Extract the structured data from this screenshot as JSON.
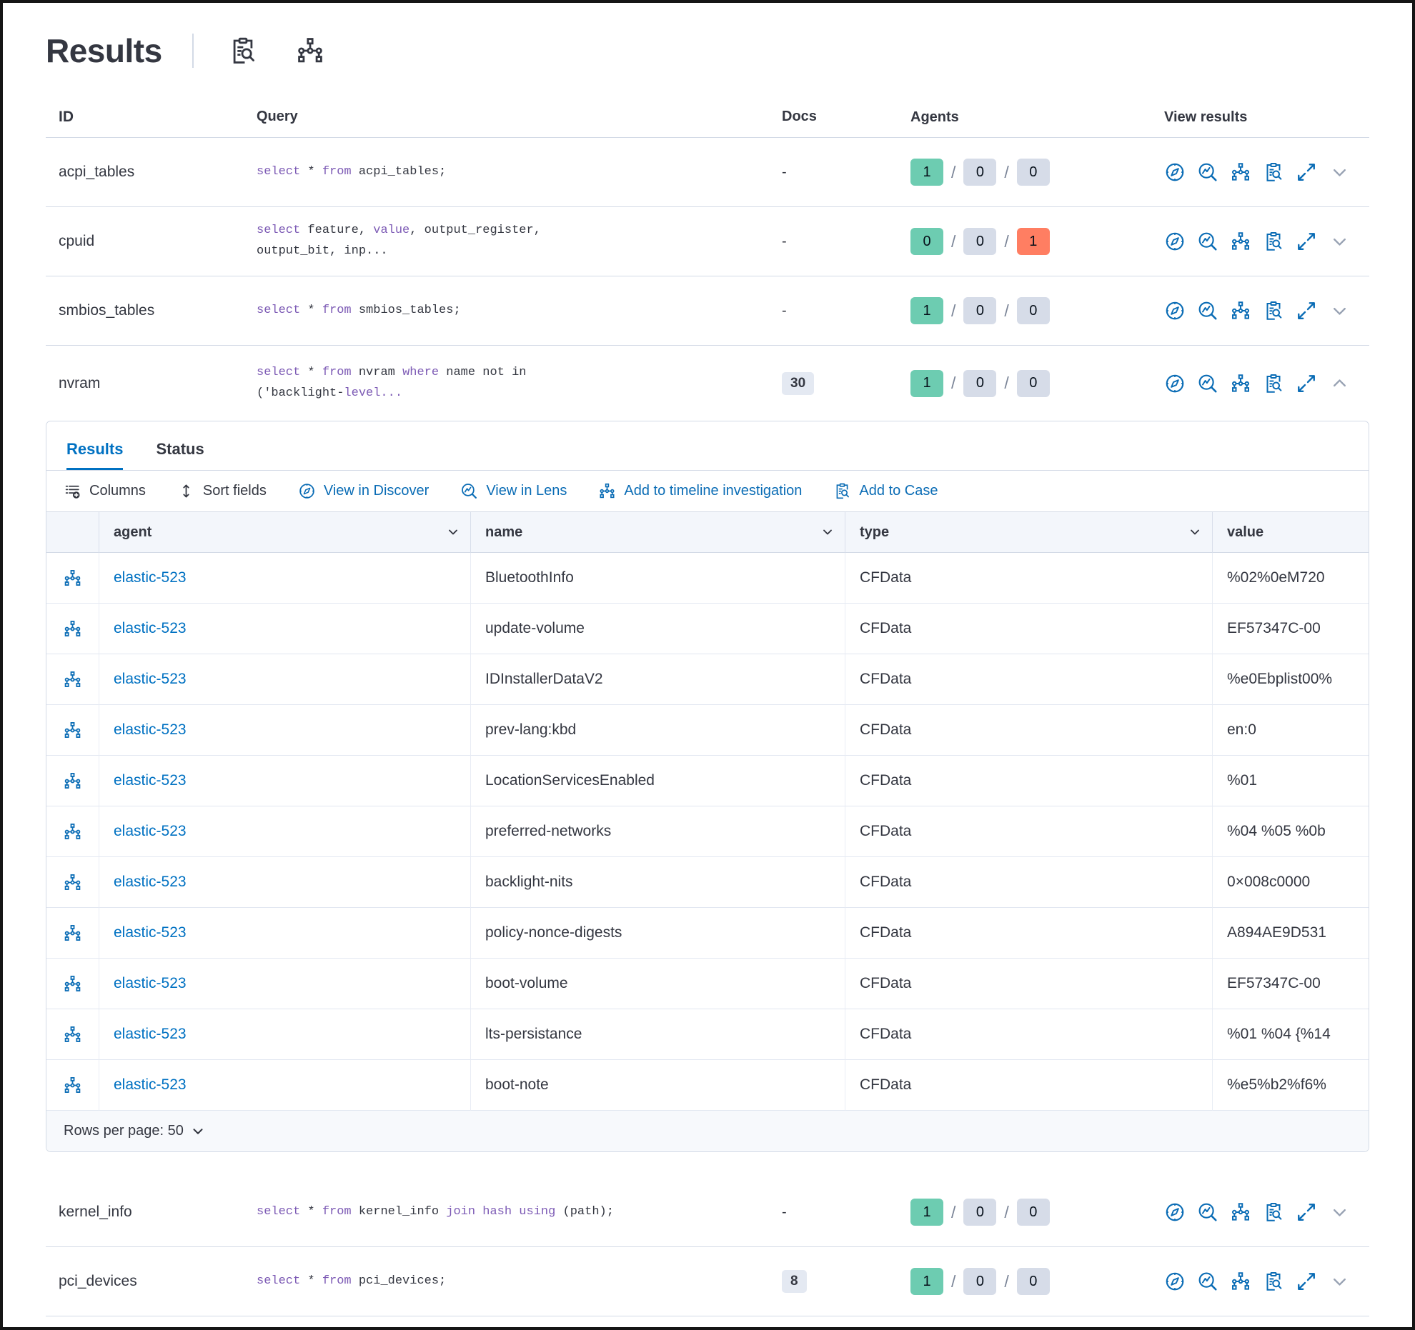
{
  "theme": {
    "link_blue": "#0071c2",
    "icon_blue": "#0a6cb5",
    "keyword_purple": "#7d5bb5",
    "badge_green": "#6dccb1",
    "badge_gray": "#d6dce8",
    "badge_red": "#ff7e62",
    "text": "#343741",
    "border": "#d3dae6"
  },
  "header": {
    "title": "Results"
  },
  "table": {
    "columns": [
      "ID",
      "Query",
      "Docs",
      "Agents",
      "View results"
    ]
  },
  "agents_separator": "/",
  "view_actions": [
    {
      "icon": "discover",
      "name": "view-in-discover-icon"
    },
    {
      "icon": "lens",
      "name": "view-in-lens-icon"
    },
    {
      "icon": "timeline",
      "name": "add-to-timeline-icon"
    },
    {
      "icon": "case",
      "name": "add-to-case-icon"
    },
    {
      "icon": "expand",
      "name": "expand-results-icon"
    }
  ],
  "queries": [
    {
      "id": "acpi_tables",
      "docs": "-",
      "docs_badge": false,
      "agents": [
        1,
        0,
        0
      ],
      "expanded": false,
      "sql": [
        {
          "t": "select",
          "k": true
        },
        {
          "t": " * "
        },
        {
          "t": "from",
          "k": true
        },
        {
          "t": " acpi_tables;"
        }
      ]
    },
    {
      "id": "cpuid",
      "docs": "-",
      "docs_badge": false,
      "agents": [
        0,
        0,
        1
      ],
      "expanded": false,
      "sql": [
        {
          "t": "select",
          "k": true
        },
        {
          "t": " feature, "
        },
        {
          "t": "value",
          "k": true
        },
        {
          "t": ", output_register,\noutput_bit, inp..."
        }
      ]
    },
    {
      "id": "smbios_tables",
      "docs": "-",
      "docs_badge": false,
      "agents": [
        1,
        0,
        0
      ],
      "expanded": false,
      "sql": [
        {
          "t": "select",
          "k": true
        },
        {
          "t": " * "
        },
        {
          "t": "from",
          "k": true
        },
        {
          "t": " smbios_tables;"
        }
      ]
    },
    {
      "id": "nvram",
      "docs": "30",
      "docs_badge": true,
      "agents": [
        1,
        0,
        0
      ],
      "expanded": true,
      "sql": [
        {
          "t": "select",
          "k": true
        },
        {
          "t": " * "
        },
        {
          "t": "from",
          "k": true
        },
        {
          "t": " nvram "
        },
        {
          "t": "where",
          "k": true
        },
        {
          "t": " name not in\n('backlight-"
        },
        {
          "t": "level...",
          "k": true
        }
      ]
    },
    {
      "id": "kernel_info",
      "docs": "-",
      "docs_badge": false,
      "agents": [
        1,
        0,
        0
      ],
      "expanded": false,
      "sql": [
        {
          "t": "select",
          "k": true
        },
        {
          "t": " * "
        },
        {
          "t": "from",
          "k": true
        },
        {
          "t": " kernel_info "
        },
        {
          "t": "join",
          "k": true
        },
        {
          "t": " "
        },
        {
          "t": "hash",
          "k": true
        },
        {
          "t": " "
        },
        {
          "t": "using",
          "k": true
        },
        {
          "t": " (path);"
        }
      ]
    },
    {
      "id": "pci_devices",
      "docs": "8",
      "docs_badge": true,
      "agents": [
        1,
        0,
        0
      ],
      "expanded": false,
      "sql": [
        {
          "t": "select",
          "k": true
        },
        {
          "t": " * "
        },
        {
          "t": "from",
          "k": true
        },
        {
          "t": " pci_devices;"
        }
      ]
    }
  ],
  "panel": {
    "tabs": [
      {
        "label": "Results",
        "active": true
      },
      {
        "label": "Status",
        "active": false
      }
    ],
    "toolbar": [
      {
        "label": "Columns",
        "icon": "columns",
        "blue": false,
        "name": "columns-button"
      },
      {
        "label": "Sort fields",
        "icon": "sort",
        "blue": false,
        "name": "sort-fields-button"
      },
      {
        "label": "View in Discover",
        "icon": "discover",
        "blue": true,
        "name": "view-in-discover-button"
      },
      {
        "label": "View in Lens",
        "icon": "lens",
        "blue": true,
        "name": "view-in-lens-button"
      },
      {
        "label": "Add to timeline investigation",
        "icon": "timeline",
        "blue": true,
        "name": "add-to-timeline-button"
      },
      {
        "label": "Add to Case",
        "icon": "case",
        "blue": true,
        "name": "add-to-case-button"
      }
    ],
    "grid": {
      "columns": [
        {
          "label": "agent",
          "sortable": true
        },
        {
          "label": "name",
          "sortable": true
        },
        {
          "label": "type",
          "sortable": true
        },
        {
          "label": "value",
          "sortable": false
        }
      ],
      "rows": [
        {
          "agent": "elastic-523",
          "name": "BluetoothInfo",
          "type": "CFData",
          "value": "%02%0eM720"
        },
        {
          "agent": "elastic-523",
          "name": "update-volume",
          "type": "CFData",
          "value": "EF57347C-00"
        },
        {
          "agent": "elastic-523",
          "name": "IDInstallerDataV2",
          "type": "CFData",
          "value": "%e0Ebplist00%"
        },
        {
          "agent": "elastic-523",
          "name": "prev-lang:kbd",
          "type": "CFData",
          "value": "en:0"
        },
        {
          "agent": "elastic-523",
          "name": "LocationServicesEnabled",
          "type": "CFData",
          "value": "%01"
        },
        {
          "agent": "elastic-523",
          "name": "preferred-networks",
          "type": "CFData",
          "value": "%04 %05 %0b"
        },
        {
          "agent": "elastic-523",
          "name": "backlight-nits",
          "type": "CFData",
          "value": "0×008c0000"
        },
        {
          "agent": "elastic-523",
          "name": "policy-nonce-digests",
          "type": "CFData",
          "value": "A894AE9D531"
        },
        {
          "agent": "elastic-523",
          "name": "boot-volume",
          "type": "CFData",
          "value": "EF57347C-00"
        },
        {
          "agent": "elastic-523",
          "name": "lts-persistance",
          "type": "CFData",
          "value": "%01 %04 {%14"
        },
        {
          "agent": "elastic-523",
          "name": "boot-note",
          "type": "CFData",
          "value": "%e5%b2%f6%"
        }
      ],
      "footer": "Rows per page: 50"
    }
  }
}
